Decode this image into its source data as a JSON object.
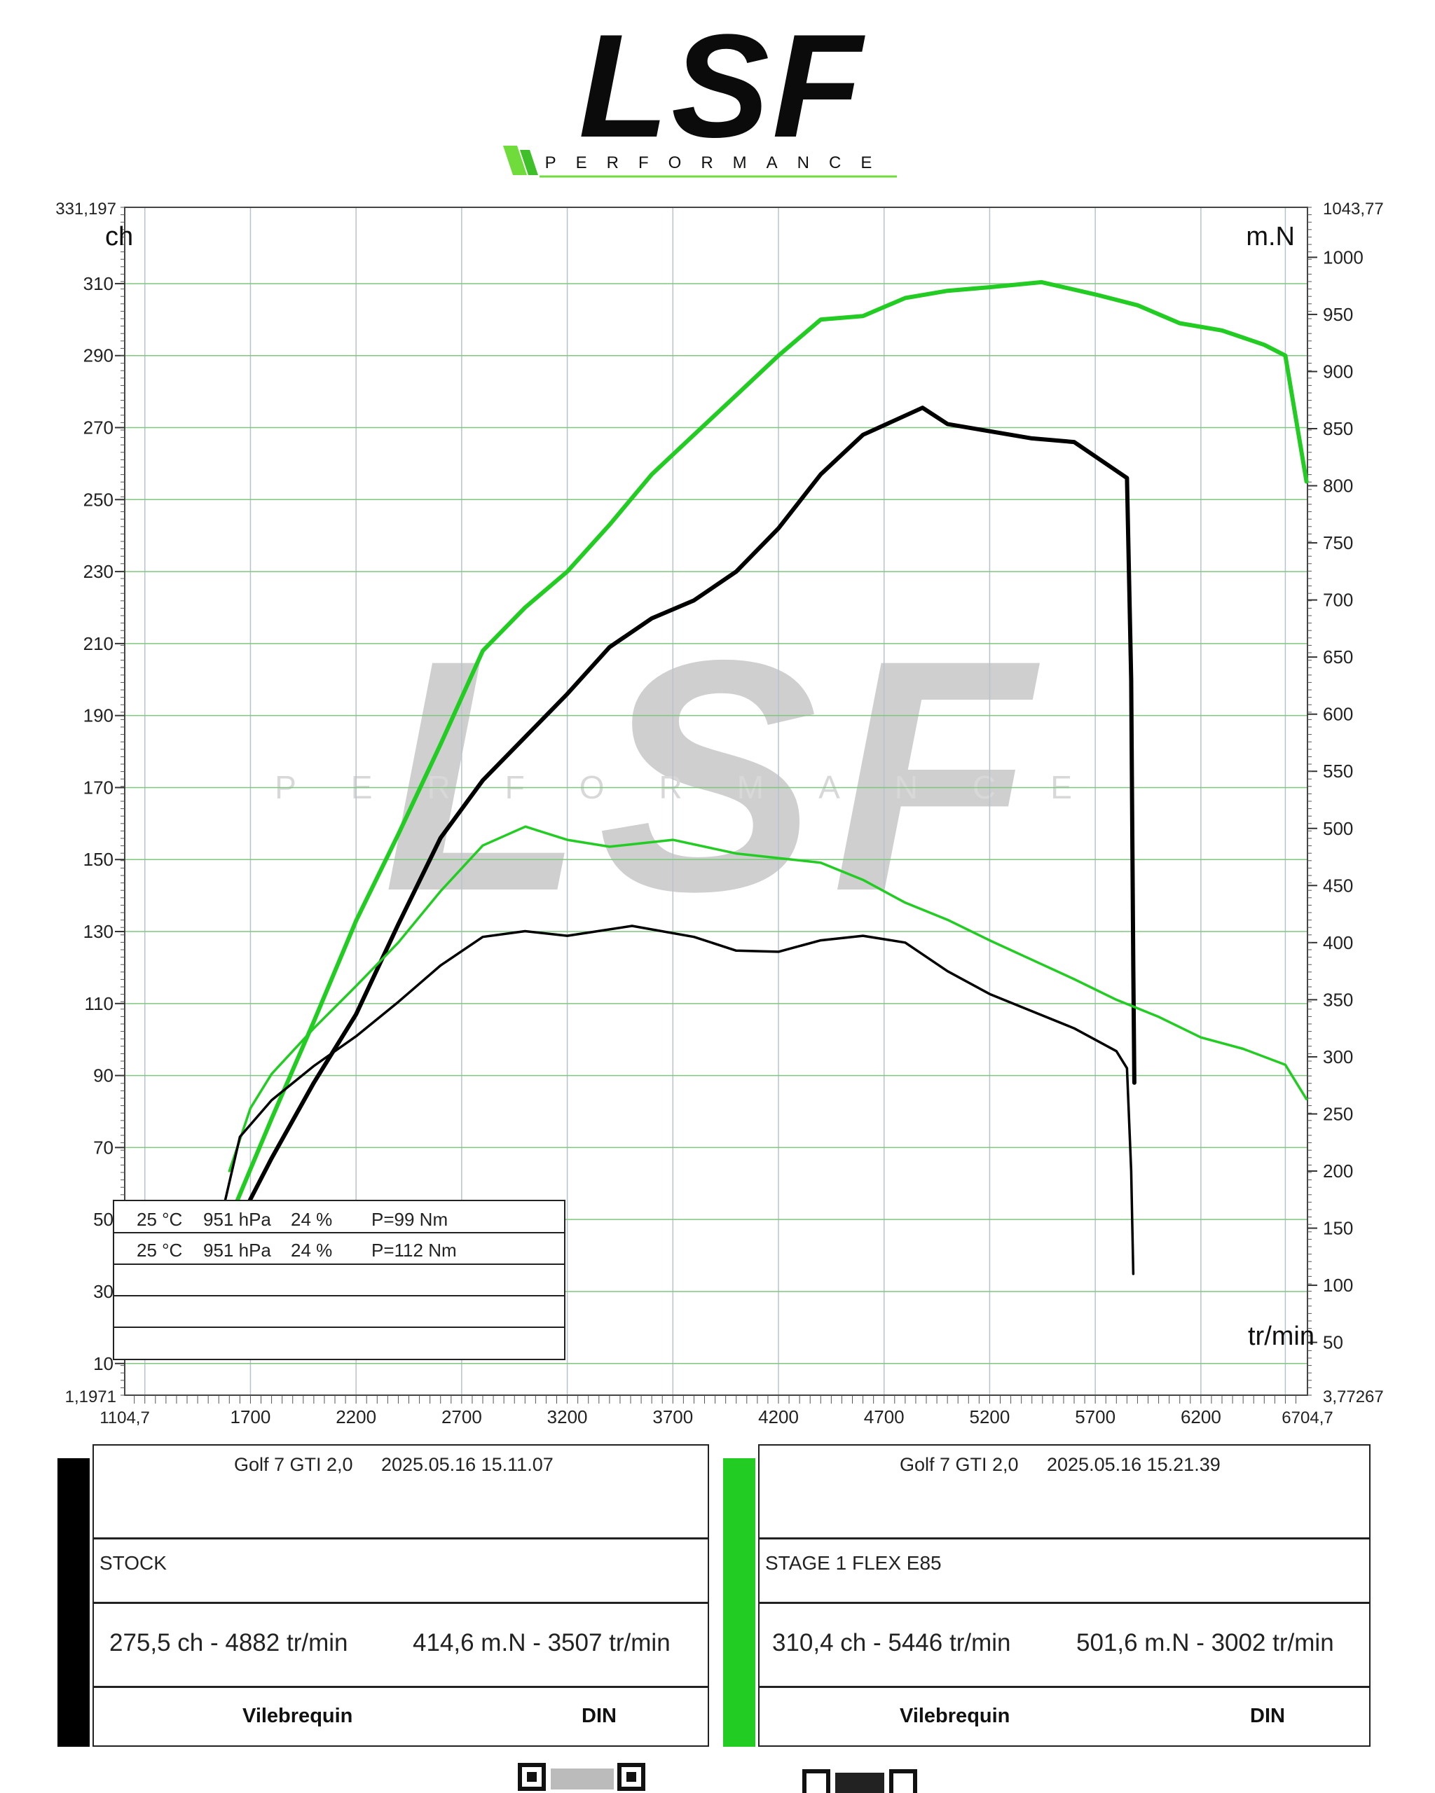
{
  "logo": {
    "text": "LSF",
    "subtitle": "PERFORMANCE"
  },
  "chart": {
    "left_unit": "ch",
    "right_unit": "m.N",
    "x_unit": "tr/min",
    "left_min_label": "1,1971",
    "left_max_label": "331,197",
    "right_min_label": "3,77267",
    "right_max_label": "1043,77",
    "x_min_label": "1104,7",
    "x_max_label": "6704,7",
    "left_ticks": [
      "10",
      "30",
      "50",
      "70",
      "90",
      "110",
      "130",
      "150",
      "170",
      "190",
      "210",
      "230",
      "250",
      "270",
      "290",
      "310"
    ],
    "right_ticks": [
      "50",
      "100",
      "150",
      "200",
      "250",
      "300",
      "350",
      "400",
      "450",
      "500",
      "550",
      "600",
      "650",
      "700",
      "750",
      "800",
      "850",
      "900",
      "950",
      "1000"
    ],
    "x_ticks": [
      "1700",
      "2200",
      "2700",
      "3200",
      "3700",
      "4200",
      "4700",
      "5200",
      "5700",
      "6200"
    ]
  },
  "conditions": [
    {
      "temp": "25 °C",
      "pressure": "951 hPa",
      "humidity": "24 %",
      "loss": "P=99 Nm"
    },
    {
      "temp": "25 °C",
      "pressure": "951 hPa",
      "humidity": "24 %",
      "loss": "P=112 Nm"
    }
  ],
  "runs": [
    {
      "color": "#000000",
      "vehicle": "Golf 7 GTI 2,0",
      "date": "2025.05.16 15.11.07",
      "label": "STOCK",
      "power_peak": "275,5 ch - 4882 tr/min",
      "torque_peak": "414,6 m.N - 3507 tr/min",
      "measure": "Vilebrequin",
      "norm": "DIN"
    },
    {
      "color": "#22cc22",
      "vehicle": "Golf 7 GTI 2,0",
      "date": "2025.05.16 15.21.39",
      "label": "STAGE 1 FLEX E85",
      "power_peak": "310,4 ch - 5446 tr/min",
      "torque_peak": "501,6 m.N - 3002 tr/min",
      "measure": "Vilebrequin",
      "norm": "DIN"
    }
  ],
  "chart_data": {
    "type": "line",
    "xlabel": "tr/min",
    "ylabel": "ch",
    "y2label": "m.N",
    "xlim": [
      1104.7,
      6704.7
    ],
    "ylim": [
      1.1971,
      331.197
    ],
    "y2lim": [
      3.77267,
      1043.77
    ],
    "grid": true,
    "series": [
      {
        "name": "STAGE 1 FLEX E85",
        "axis": "left",
        "quantity": "power",
        "color": "#22cc22",
        "x": [
          1600,
          1800,
          2000,
          2200,
          2400,
          2600,
          2800,
          3000,
          3200,
          3400,
          3600,
          3800,
          4000,
          4200,
          4400,
          4600,
          4800,
          5000,
          5200,
          5446,
          5700,
          5900,
          6100,
          6300,
          6500,
          6600,
          6700
        ],
        "y": [
          50,
          78,
          105,
          133,
          157,
          182,
          208,
          220,
          230,
          243,
          257,
          268,
          279,
          290,
          300,
          301,
          306,
          308,
          309,
          310.4,
          307,
          304,
          299,
          297,
          293,
          290,
          255
        ]
      },
      {
        "name": "STOCK",
        "axis": "left",
        "quantity": "power",
        "color": "#000000",
        "x": [
          1650,
          1800,
          2000,
          2200,
          2400,
          2600,
          2800,
          3000,
          3200,
          3400,
          3600,
          3800,
          4000,
          4200,
          4400,
          4600,
          4882,
          5000,
          5200,
          5400,
          5600,
          5800,
          5850,
          5870,
          5880,
          5885
        ],
        "y": [
          50,
          67,
          88,
          107,
          132,
          156,
          172,
          184,
          196,
          209,
          217,
          222,
          230,
          242,
          257,
          268,
          275.5,
          271,
          269,
          267,
          266,
          258,
          256,
          200,
          120,
          88
        ]
      },
      {
        "name": "STAGE 1 FLEX E85",
        "axis": "right",
        "quantity": "torque",
        "color": "#22cc22",
        "x": [
          1600,
          1700,
          1800,
          2000,
          2200,
          2400,
          2600,
          2800,
          3002,
          3200,
          3400,
          3700,
          4000,
          4400,
          4600,
          4800,
          5000,
          5200,
          5400,
          5600,
          5800,
          6000,
          6200,
          6400,
          6600,
          6700
        ],
        "y": [
          200,
          255,
          285,
          325,
          362,
          400,
          445,
          485,
          501.6,
          490,
          484,
          490,
          478,
          470,
          455,
          435,
          420,
          402,
          385,
          368,
          350,
          335,
          317,
          307,
          293,
          263
        ]
      },
      {
        "name": "STOCK",
        "axis": "right",
        "quantity": "torque",
        "color": "#000000",
        "x": [
          1550,
          1650,
          1800,
          2000,
          2200,
          2400,
          2600,
          2800,
          3000,
          3200,
          3507,
          3800,
          4000,
          4200,
          4400,
          4600,
          4800,
          5000,
          5200,
          5400,
          5600,
          5800,
          5850,
          5870,
          5880
        ],
        "y": [
          150,
          230,
          262,
          292,
          318,
          348,
          380,
          405,
          410,
          406,
          414.6,
          405,
          393,
          392,
          402,
          406,
          400,
          375,
          355,
          340,
          325,
          305,
          290,
          200,
          110
        ]
      }
    ]
  }
}
